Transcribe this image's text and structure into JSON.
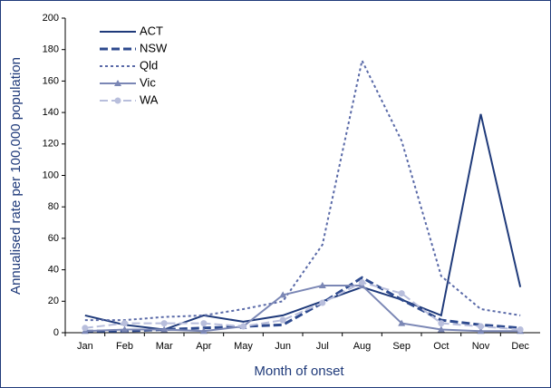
{
  "chart_data": {
    "type": "line",
    "x_label": "Month of onset",
    "y_label": "Annualised rate per 100,000 population",
    "categories": [
      "Jan",
      "Feb",
      "Mar",
      "Apr",
      "May",
      "Jun",
      "Jul",
      "Aug",
      "Sep",
      "Oct",
      "Nov",
      "Dec"
    ],
    "series": [
      {
        "name": "ACT",
        "color": "#1f3a7a",
        "dash": "solid",
        "marker": "none",
        "values": [
          11,
          5,
          2,
          11,
          7,
          11,
          20,
          29,
          21,
          11,
          139,
          29
        ]
      },
      {
        "name": "NSW",
        "color": "#2e4a8e",
        "dash": "dashed",
        "marker": "none",
        "values": [
          1,
          1,
          2,
          3,
          4,
          5,
          19,
          35,
          21,
          8,
          5,
          3
        ]
      },
      {
        "name": "Qld",
        "color": "#5a6aa8",
        "dash": "dotted",
        "marker": "none",
        "values": [
          8,
          8,
          10,
          11,
          15,
          20,
          56,
          173,
          122,
          36,
          15,
          11
        ]
      },
      {
        "name": "Vic",
        "color": "#7b87b5",
        "dash": "solid",
        "marker": "triangle",
        "values": [
          1,
          2,
          2,
          1,
          4,
          24,
          30,
          30,
          6,
          2,
          1,
          1
        ]
      },
      {
        "name": "WA",
        "color": "#b8bedc",
        "dash": "dashed",
        "marker": "circle",
        "values": [
          3,
          6,
          6,
          6,
          4,
          8,
          19,
          32,
          25,
          6,
          4,
          2
        ]
      }
    ],
    "ylim": [
      0,
      200
    ],
    "yticks": [
      0,
      20,
      40,
      60,
      80,
      100,
      120,
      140,
      160,
      180,
      200
    ],
    "legend": "upper left",
    "grid": false
  }
}
